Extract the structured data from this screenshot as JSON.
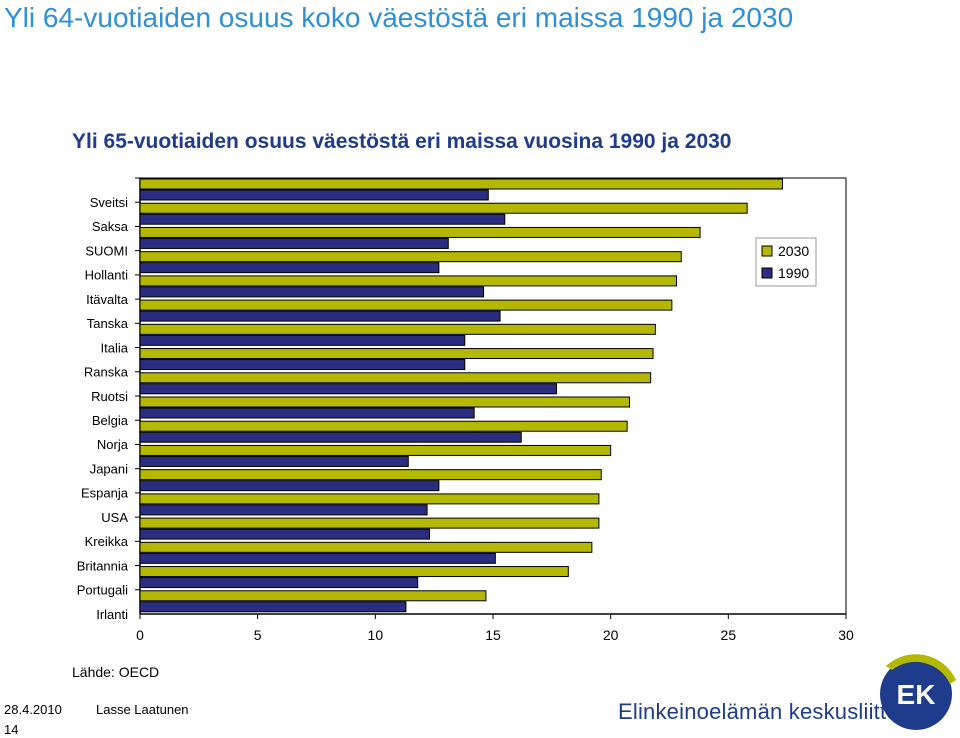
{
  "slide": {
    "title": "Yli 64-vuotiaiden osuus koko väestöstä eri maissa 1990 ja 2030",
    "source": "Lähde: OECD",
    "date": "28.4.2010",
    "author": "Lasse Laatunen",
    "page_number": "14",
    "company": "Elinkeinoelämän keskusliitto",
    "logo_text": "EK"
  },
  "colors": {
    "series_2030": "#b5b800",
    "series_1990": "#2b2d80",
    "title": "#2f8fd8",
    "chart_title": "#1f3b8c",
    "logo": "#1f3b8c"
  },
  "chart_data": {
    "type": "bar",
    "orientation": "horizontal",
    "title": "Yli 65-vuotiaiden osuus väestöstä eri maissa vuosina 1990 ja 2030",
    "xlabel": "",
    "ylabel": "",
    "xlim": [
      0,
      30
    ],
    "x_ticks": [
      0,
      5,
      10,
      15,
      20,
      25,
      30
    ],
    "grid": false,
    "legend_position": "top-right",
    "categories": [
      "Sveitsi",
      "Saksa",
      "SUOMI",
      "Hollanti",
      "Itävalta",
      "Tanska",
      "Italia",
      "Ranska",
      "Ruotsi",
      "Belgia",
      "Norja",
      "Japani",
      "Espanja",
      "USA",
      "Kreikka",
      "Britannia",
      "Portugali",
      "Irlanti"
    ],
    "series": [
      {
        "name": "2030",
        "values": [
          27.3,
          25.8,
          23.8,
          23.0,
          22.8,
          22.6,
          21.9,
          21.8,
          21.7,
          20.8,
          20.7,
          20.0,
          19.6,
          19.5,
          19.5,
          19.2,
          18.2,
          14.7
        ]
      },
      {
        "name": "1990",
        "values": [
          14.8,
          15.5,
          13.1,
          12.7,
          14.6,
          15.3,
          13.8,
          13.8,
          17.7,
          14.2,
          16.2,
          11.4,
          12.7,
          12.2,
          12.3,
          15.1,
          11.8,
          11.3
        ]
      }
    ]
  }
}
